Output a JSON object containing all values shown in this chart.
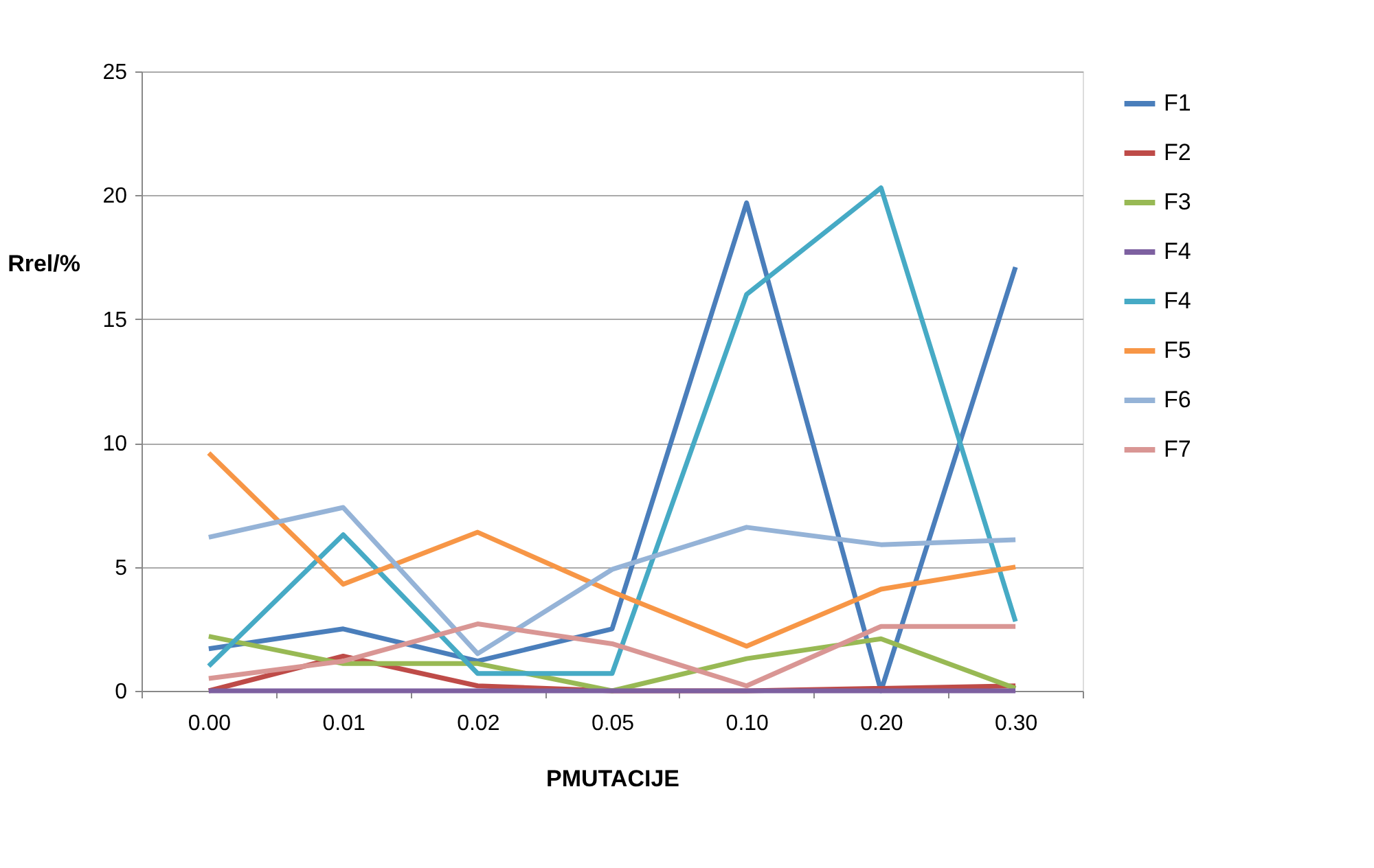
{
  "chart_data": {
    "type": "line",
    "xlabel": "PMUTACIJE",
    "ylabel": "Rrel/%",
    "categories": [
      "0.00",
      "0.01",
      "0.02",
      "0.05",
      "0.10",
      "0.20",
      "0.30"
    ],
    "ylim": [
      0,
      25
    ],
    "yticks": [
      0,
      5,
      10,
      15,
      20,
      25
    ],
    "grid": "y",
    "legend": "right",
    "marker": "none",
    "line_style": "solid",
    "series": [
      {
        "name": "F1",
        "color": "#4a7ebb",
        "values": [
          1.7,
          2.5,
          1.2,
          2.5,
          19.7,
          0,
          17.1
        ]
      },
      {
        "name": "F2",
        "color": "#be4b48",
        "values": [
          0,
          1.4,
          0.2,
          0,
          0,
          0.1,
          0.2
        ]
      },
      {
        "name": "F3",
        "color": "#98b954",
        "values": [
          2.2,
          1.1,
          1.1,
          0,
          1.3,
          2.1,
          0.1
        ]
      },
      {
        "name": "F4",
        "color": "#7d60a0",
        "values": [
          0,
          0,
          0,
          0,
          0,
          0,
          0
        ]
      },
      {
        "name": "F4",
        "color": "#46aac5",
        "values": [
          1.0,
          6.3,
          0.7,
          0.7,
          16.0,
          20.3,
          2.8
        ]
      },
      {
        "name": "F5",
        "color": "#f79646",
        "values": [
          9.6,
          4.3,
          6.4,
          4.0,
          1.8,
          4.1,
          5.0
        ]
      },
      {
        "name": "F6",
        "color": "#95b3d7",
        "values": [
          6.2,
          7.4,
          1.5,
          4.9,
          6.6,
          5.9,
          6.1
        ]
      },
      {
        "name": "F7",
        "color": "#d99694",
        "values": [
          0.5,
          1.2,
          2.7,
          1.9,
          0.2,
          2.6,
          2.6
        ]
      }
    ]
  }
}
